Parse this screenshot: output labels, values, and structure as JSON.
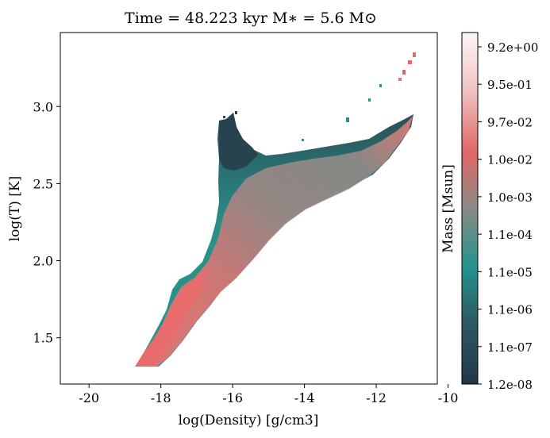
{
  "chart_data": {
    "type": "heatmap",
    "title": "Time = 48.223 kyr    M$_*$ = 5.6 M$_\\odot$",
    "title_display": "Time = 48.223 kyr    M∗ = 5.6 M⊙",
    "xlabel": "log(Density) [g/cm3]",
    "ylabel": "log(T) [K]",
    "xlim": [
      -20.8,
      -10.3
    ],
    "ylim": [
      1.2,
      3.48
    ],
    "x_ticks": [
      -20,
      -18,
      -16,
      -14,
      -12,
      -10
    ],
    "x_tick_labels": [
      "-20",
      "-18",
      "-16",
      "-14",
      "-12",
      "-10"
    ],
    "y_ticks": [
      1.5,
      2.0,
      2.5,
      3.0
    ],
    "y_tick_labels": [
      "1.5",
      "2.0",
      "2.5",
      "3.0"
    ],
    "grid": false,
    "colorbar": {
      "label": "Mass [Msun]",
      "scale": "log",
      "range": [
        1.2e-08,
        9.2
      ],
      "tick_labels": [
        "9.2e+00",
        "9.5e-01",
        "9.7e-02",
        "1.0e-02",
        "1.0e-03",
        "1.1e-04",
        "1.1e-05",
        "1.1e-06",
        "1.1e-07",
        "1.2e-08"
      ],
      "colors": [
        "#23364a",
        "#2e5a62",
        "#22938d",
        "#8a8a86",
        "#e06766",
        "#f2c5c5",
        "#fbf5f5"
      ]
    },
    "region": {
      "description_points": [
        {
          "x": -18.6,
          "y": 1.32,
          "mass": "high"
        },
        {
          "x": -18.0,
          "y": 1.32,
          "mass": "high"
        },
        {
          "x": -17.2,
          "y": 1.65,
          "mass": "high"
        },
        {
          "x": -16.0,
          "y": 1.95,
          "mass": "medium"
        },
        {
          "x": -15.0,
          "y": 2.2,
          "mass": "medium"
        },
        {
          "x": -13.5,
          "y": 2.4,
          "mass": "medium"
        },
        {
          "x": -12.0,
          "y": 2.55,
          "mass": "high"
        },
        {
          "x": -11.0,
          "y": 2.82,
          "mass": "high"
        },
        {
          "x": -10.7,
          "y": 2.9,
          "mass": "high"
        },
        {
          "x": -12.0,
          "y": 2.8,
          "mass": "low"
        },
        {
          "x": -14.0,
          "y": 2.7,
          "mass": "low"
        },
        {
          "x": -16.0,
          "y": 2.9,
          "mass": "very-low"
        },
        {
          "x": -16.2,
          "y": 2.6,
          "mass": "low"
        },
        {
          "x": -16.2,
          "y": 2.4,
          "mass": "low"
        },
        {
          "x": -16.8,
          "y": 2.1,
          "mass": "low"
        },
        {
          "x": -17.5,
          "y": 1.88,
          "mass": "low"
        },
        {
          "x": -18.5,
          "y": 1.4,
          "mass": "high"
        }
      ]
    }
  }
}
